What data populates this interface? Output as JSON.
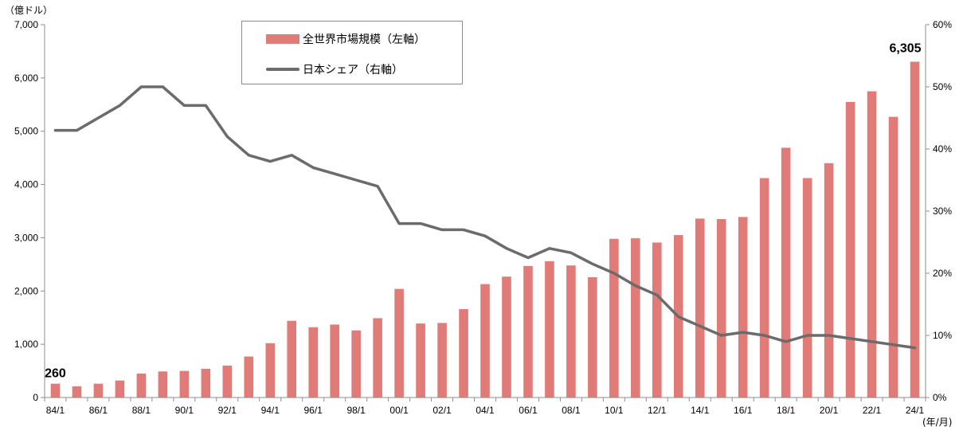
{
  "chart_data": {
    "type": "bar",
    "ylabel_left": "（億ドル）",
    "xlabel": "(年/月)",
    "left_axis": {
      "ylim": [
        0,
        7000
      ],
      "ticks": [
        "0",
        "1,000",
        "2,000",
        "3,000",
        "4,000",
        "5,000",
        "6,000",
        "7,000"
      ]
    },
    "right_axis": {
      "ylim": [
        0,
        60
      ],
      "ticks": [
        "0%",
        "10%",
        "20%",
        "30%",
        "40%",
        "50%",
        "60%"
      ]
    },
    "x_tick_labels": [
      "84/1",
      "86/1",
      "88/1",
      "90/1",
      "92/1",
      "94/1",
      "96/1",
      "98/1",
      "00/1",
      "02/1",
      "04/1",
      "06/1",
      "08/1",
      "10/1",
      "12/1",
      "14/1",
      "16/1",
      "18/1",
      "20/1",
      "22/1",
      "24/1"
    ],
    "legend": {
      "position": "top-left"
    },
    "colors": {
      "bar": "#e07b78",
      "line": "#6b6b6b",
      "axis": "#8c8c8c"
    },
    "series": [
      {
        "name": "全世界市場規模（左軸）",
        "type": "bar",
        "axis": "left",
        "values": [
          260,
          210,
          260,
          320,
          450,
          490,
          500,
          540,
          600,
          770,
          1020,
          1440,
          1320,
          1370,
          1260,
          1490,
          2040,
          1390,
          1400,
          1660,
          2130,
          2270,
          2470,
          2560,
          2480,
          2260,
          2980,
          2990,
          2910,
          3050,
          3360,
          3350,
          3390,
          4120,
          4690,
          4120,
          4400,
          5550,
          5750,
          5270,
          6305
        ]
      },
      {
        "name": "日本シェア（右軸）",
        "type": "line",
        "axis": "right",
        "values": [
          43,
          43,
          45,
          47,
          50,
          50,
          47,
          47,
          42,
          39,
          38,
          39,
          37,
          36,
          35,
          34,
          28,
          28,
          27,
          27,
          26,
          24,
          22.5,
          24,
          23.3,
          21.5,
          20,
          18,
          16.5,
          13,
          11.5,
          10,
          10.5,
          10,
          9,
          10,
          10,
          9.5,
          9,
          8.5,
          8
        ]
      }
    ],
    "annotations": [
      {
        "text": "260",
        "index": 0
      },
      {
        "text": "6,305",
        "index": 40
      }
    ]
  }
}
